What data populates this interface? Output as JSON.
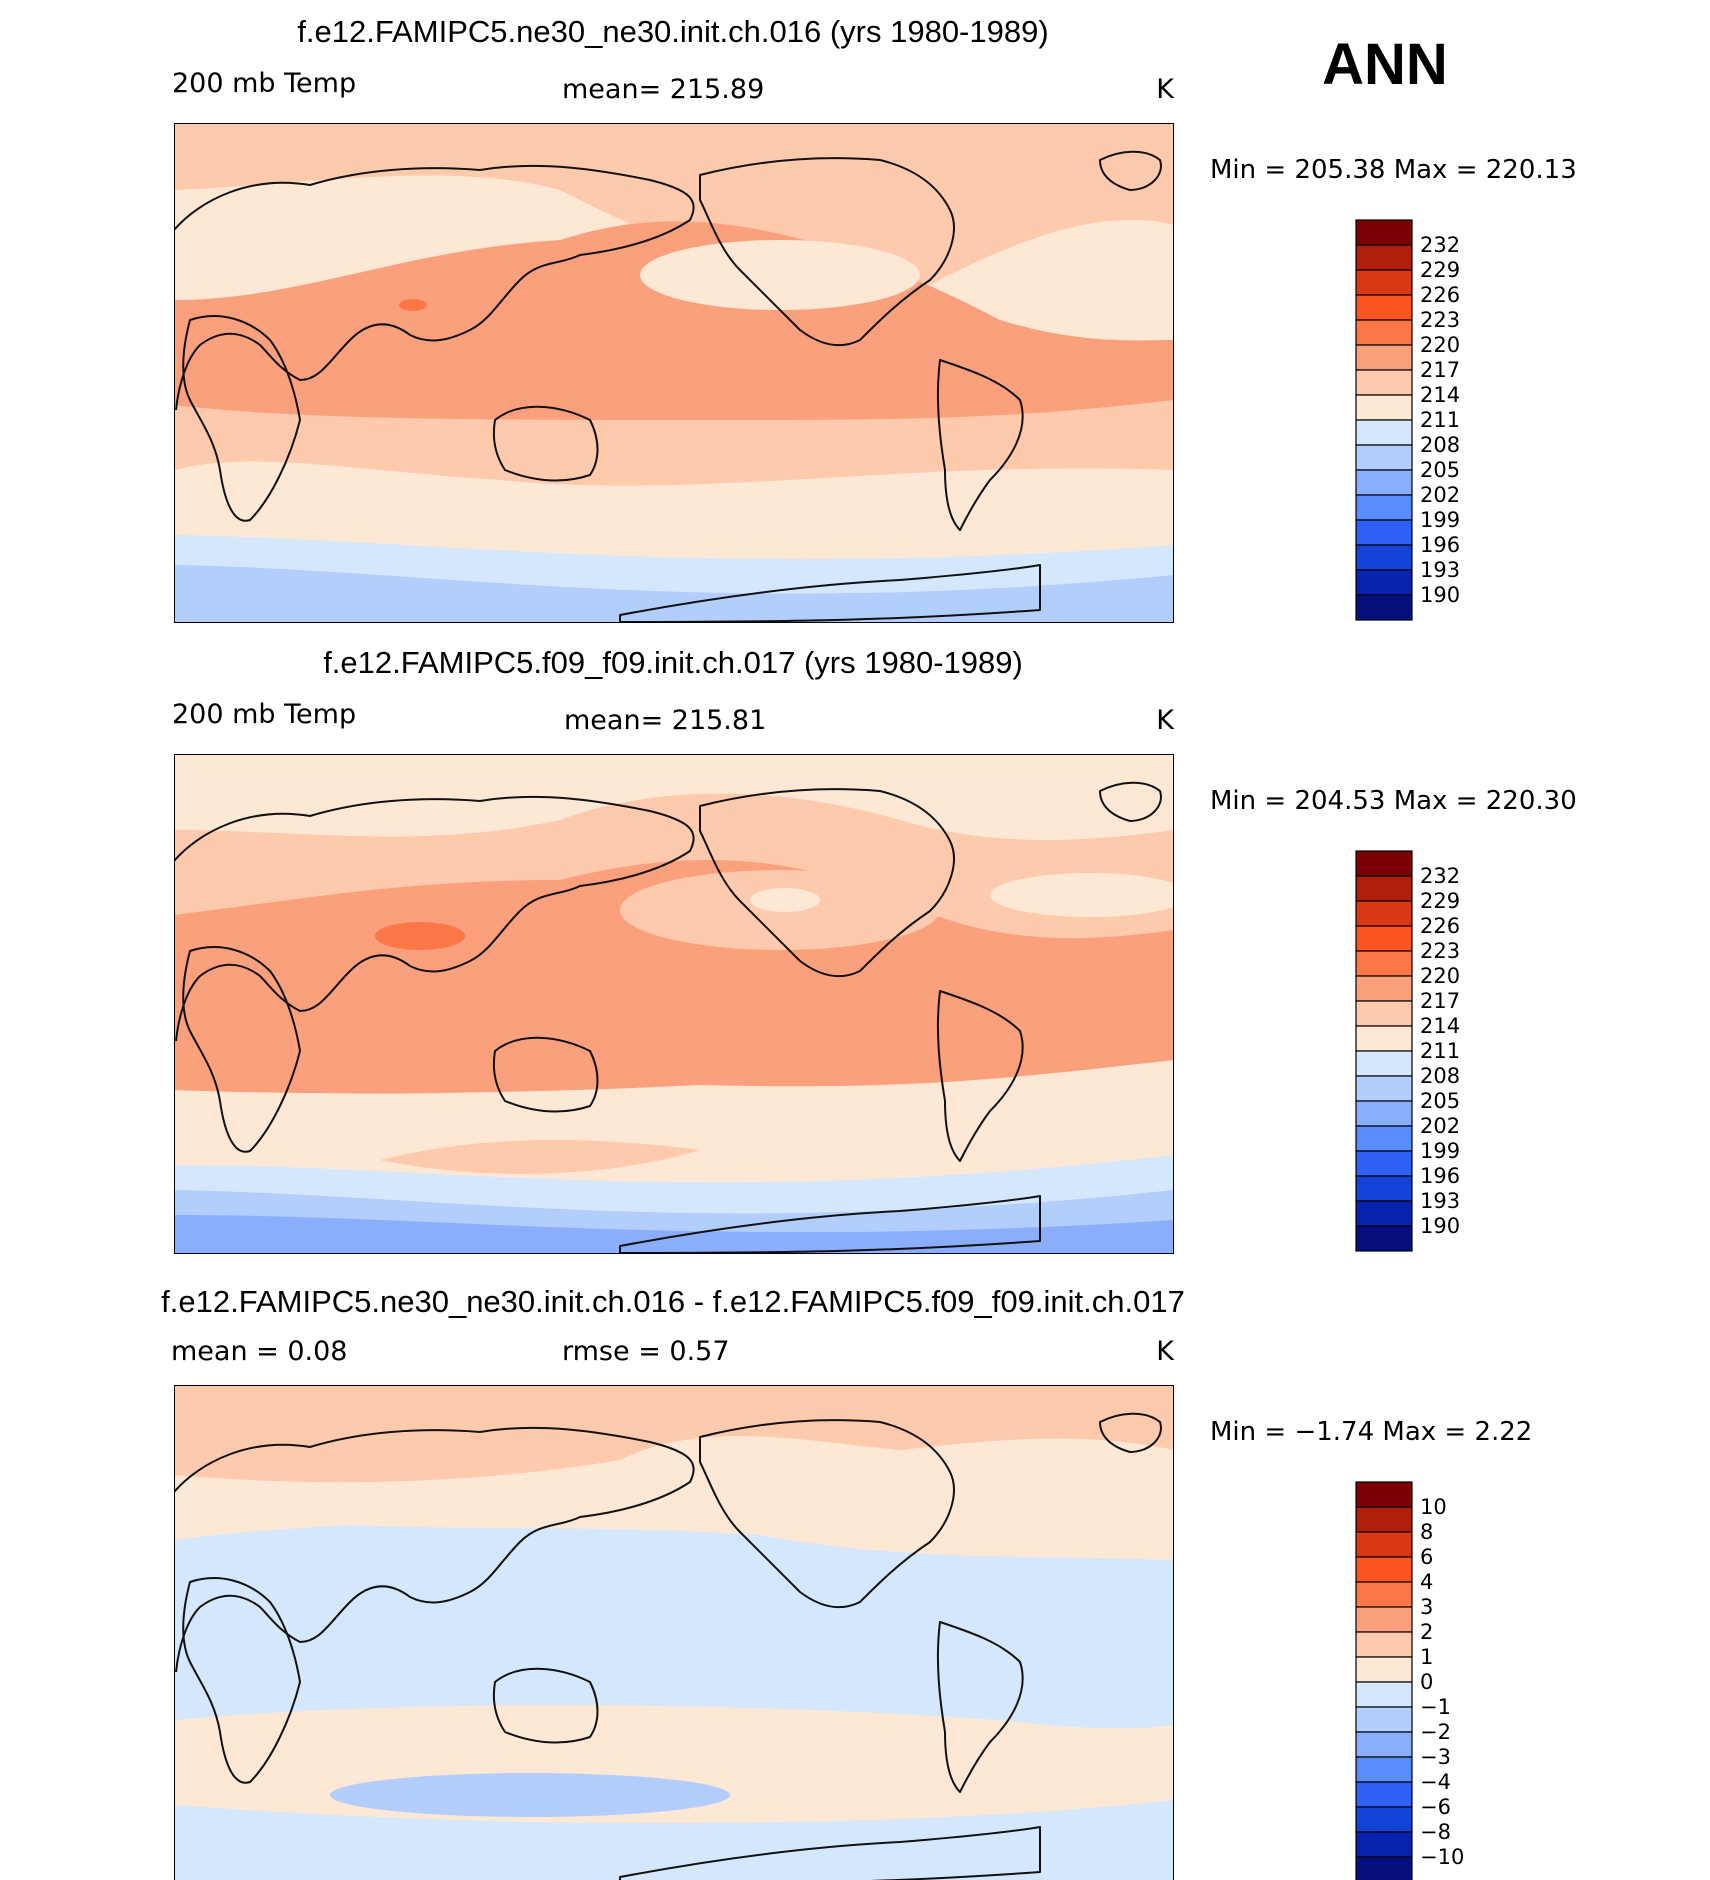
{
  "season": "ANN",
  "panels": [
    {
      "title": "f.e12.FAMIPC5.ne30_ne30.init.ch.016 (yrs 1980-1989)",
      "left_label": "200  mb  Temp",
      "center_label": "mean=  215.89",
      "units": "K",
      "minmax": "Min  =  205.38  Max  =  220.13",
      "colorbar": {
        "labels": [
          "232",
          "229",
          "226",
          "223",
          "220",
          "217",
          "214",
          "211",
          "208",
          "205",
          "202",
          "199",
          "196",
          "193",
          "190"
        ],
        "colors": [
          "#7a0004",
          "#b11e0c",
          "#da3812",
          "#fd5520",
          "#fb7747",
          "#fba07d",
          "#fdcaad",
          "#fde7d5",
          "#d5e7fc",
          "#b3cdfc",
          "#8aaefc",
          "#5b8cfb",
          "#2e60f5",
          "#1342d6",
          "#0a22b0",
          "#040e7c"
        ]
      },
      "fields": {
        "base": "#fde7d5",
        "band1": "#fdcaad",
        "band2": "#fba07d",
        "hot": "#fb7747",
        "cold1": "#d5e7fc",
        "cold2": "#b3cdfc",
        "cold3": "#8aaefc"
      }
    },
    {
      "title": "f.e12.FAMIPC5.f09_f09.init.ch.017 (yrs 1980-1989)",
      "left_label": "200  mb  Temp",
      "center_label": "mean=  215.81",
      "units": "K",
      "minmax": "Min  =  204.53  Max  =  220.30",
      "colorbar": {
        "labels": [
          "232",
          "229",
          "226",
          "223",
          "220",
          "217",
          "214",
          "211",
          "208",
          "205",
          "202",
          "199",
          "196",
          "193",
          "190"
        ],
        "colors": [
          "#7a0004",
          "#b11e0c",
          "#da3812",
          "#fd5520",
          "#fb7747",
          "#fba07d",
          "#fdcaad",
          "#fde7d5",
          "#d5e7fc",
          "#b3cdfc",
          "#8aaefc",
          "#5b8cfb",
          "#2e60f5",
          "#1342d6",
          "#0a22b0",
          "#040e7c"
        ]
      },
      "fields": {
        "base": "#fde7d5",
        "band1": "#fdcaad",
        "band2": "#fba07d",
        "hot": "#fb7747",
        "cold1": "#d5e7fc",
        "cold2": "#b3cdfc",
        "cold3": "#8aaefc"
      }
    },
    {
      "title": "f.e12.FAMIPC5.ne30_ne30.init.ch.016 - f.e12.FAMIPC5.f09_f09.init.ch.017",
      "left_label": "mean  =      0.08",
      "center_label": "rmse  =      0.57",
      "units": "K",
      "minmax": "Min  =    −1.74  Max  =      2.22",
      "colorbar": {
        "labels": [
          "10",
          "8",
          "6",
          "4",
          "3",
          "2",
          "1",
          "0",
          "−1",
          "−2",
          "−3",
          "−4",
          "−6",
          "−8",
          "−10"
        ],
        "colors": [
          "#7a0004",
          "#b11e0c",
          "#da3812",
          "#fd5520",
          "#fb7747",
          "#fba07d",
          "#fdcaad",
          "#fde7d5",
          "#d5e7fc",
          "#b3cdfc",
          "#8aaefc",
          "#5b8cfb",
          "#2e60f5",
          "#1342d6",
          "#0a22b0",
          "#040e7c"
        ]
      },
      "fields": {
        "base": "#d5e7fc",
        "band1": "#fde7d5",
        "band2": "#fdcaad",
        "hot": "#fba07d",
        "cold1": "#b3cdfc",
        "cold2": "#d5e7fc",
        "cold3": "#d5e7fc"
      }
    }
  ]
}
